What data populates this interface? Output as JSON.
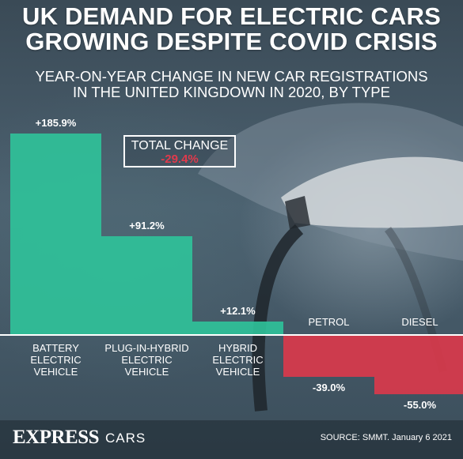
{
  "header": {
    "title_line1": "UK DEMAND FOR ELECTRIC CARS",
    "title_line2": "GROWING DESPITE COVID CRISIS",
    "subtitle_line1": "YEAR-ON-YEAR CHANGE IN NEW CAR REGISTRATIONS",
    "subtitle_line2": "IN THE UNITED KINGDOWN IN 2020, BY TYPE"
  },
  "total": {
    "label": "TOTAL CHANGE",
    "value": "-29.4%"
  },
  "chart_data": {
    "type": "bar",
    "title": "YEAR-ON-YEAR CHANGE IN NEW CAR REGISTRATIONS IN THE UNITED KINGDOWN IN 2020, BY TYPE",
    "categories": [
      {
        "line1": "BATTERY",
        "line2": "ELECTRIC",
        "line3": "VEHICLE"
      },
      {
        "line1": "PLUG-IN-HYBRID",
        "line2": "ELECTRIC",
        "line3": "VEHICLE"
      },
      {
        "line1": "HYBRID",
        "line2": "ELECTRIC",
        "line3": "VEHICLE"
      },
      {
        "line1": "PETROL",
        "line2": "",
        "line3": ""
      },
      {
        "line1": "DIESEL",
        "line2": "",
        "line3": ""
      }
    ],
    "values": [
      185.9,
      91.2,
      12.1,
      -39.0,
      -55.0
    ],
    "labels": [
      "+185.9%",
      "+91.2%",
      "+12.1%",
      "-39.0%",
      "-55.0%"
    ],
    "unit": "%",
    "colors": {
      "positive": "#2fc39a",
      "negative": "#e0384a"
    },
    "grid": false,
    "legend": "none"
  },
  "footer": {
    "brand": "EXPRESS",
    "section": "CARS",
    "source": "SOURCE: SMMT. January 6 2021"
  }
}
